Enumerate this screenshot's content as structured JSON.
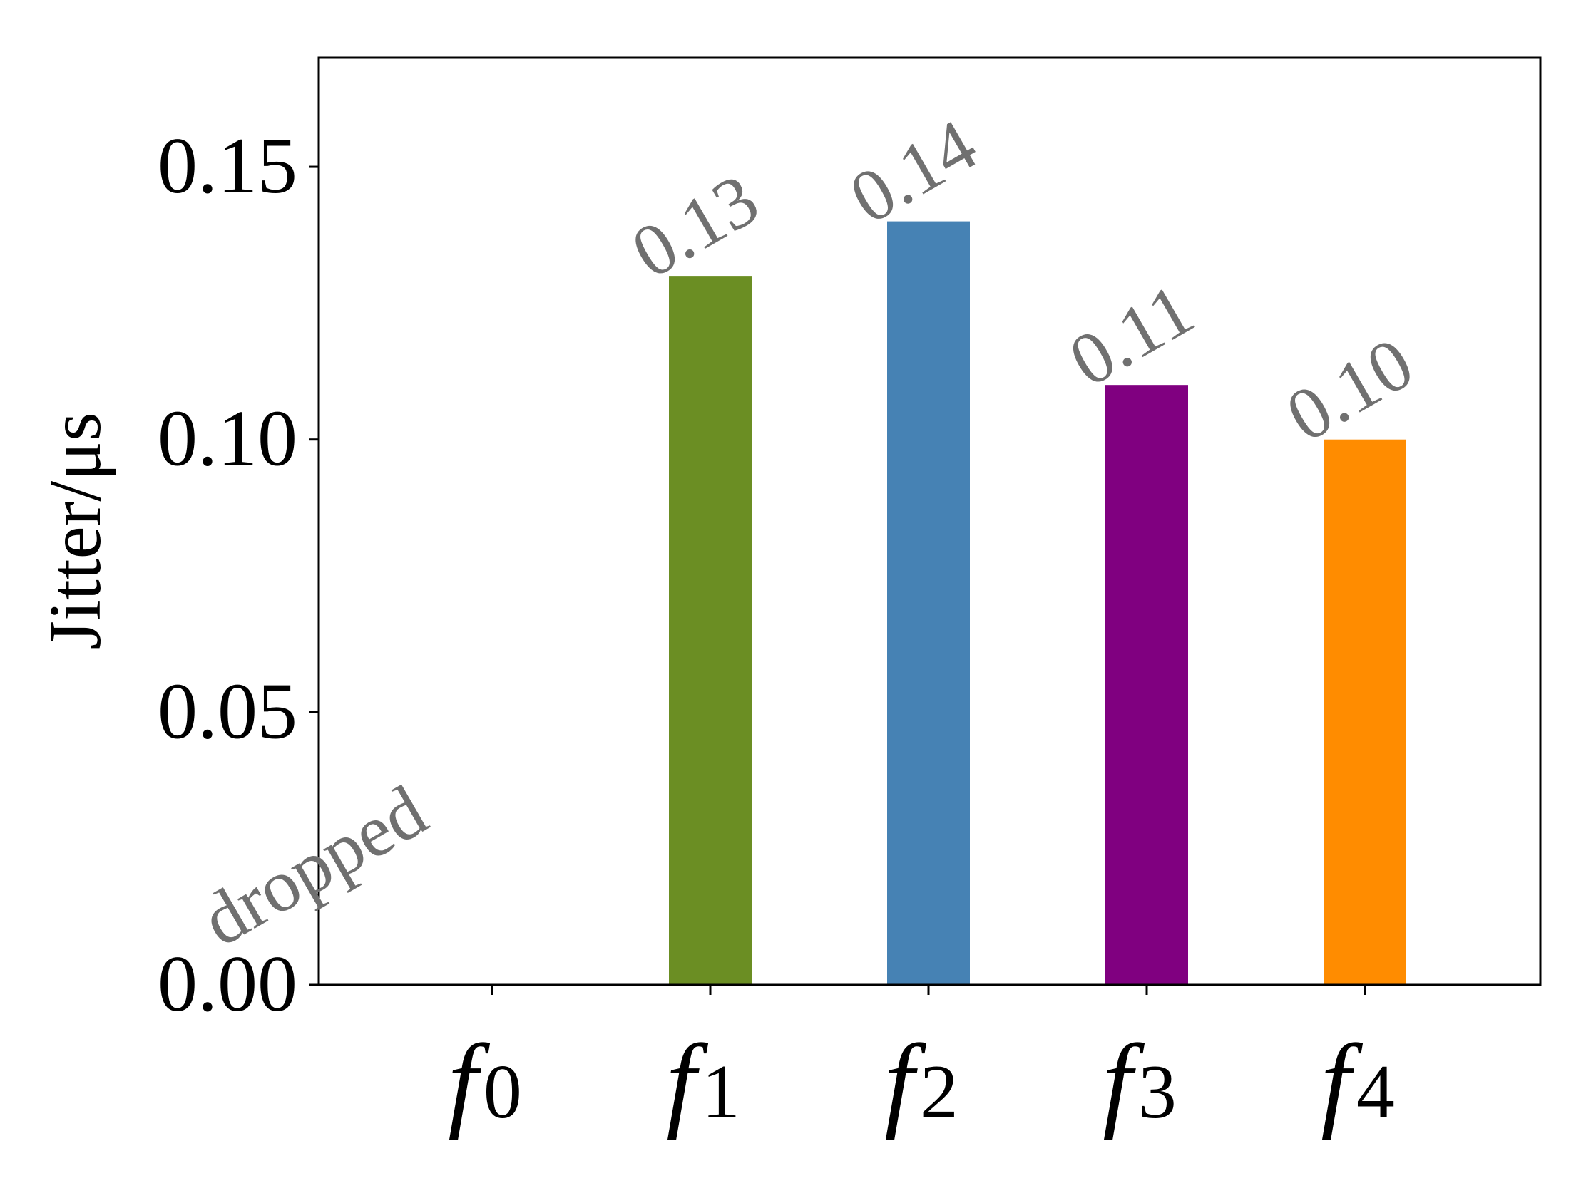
{
  "chart_data": {
    "type": "bar",
    "categories": [
      {
        "symbol": "f",
        "subscript": "0"
      },
      {
        "symbol": "f",
        "subscript": "1"
      },
      {
        "symbol": "f",
        "subscript": "2"
      },
      {
        "symbol": "f",
        "subscript": "3"
      },
      {
        "symbol": "f",
        "subscript": "4"
      }
    ],
    "values": [
      null,
      0.13,
      0.14,
      0.11,
      0.1
    ],
    "data_labels": [
      "dropped",
      "0.13",
      "0.14",
      "0.11",
      "0.10"
    ],
    "colors": [
      "#ffffff",
      "#6b8e23",
      "#4682b4",
      "#800080",
      "#ff8c00"
    ],
    "data_label_color": "#707070",
    "ylabel": "Jitter/μs",
    "xlabel": "",
    "ylim": [
      0,
      0.17
    ],
    "yticks": [
      0.0,
      0.05,
      0.1,
      0.15
    ],
    "ytick_labels": [
      "0.00",
      "0.05",
      "0.10",
      "0.15"
    ],
    "grid": false,
    "legend": "none"
  }
}
